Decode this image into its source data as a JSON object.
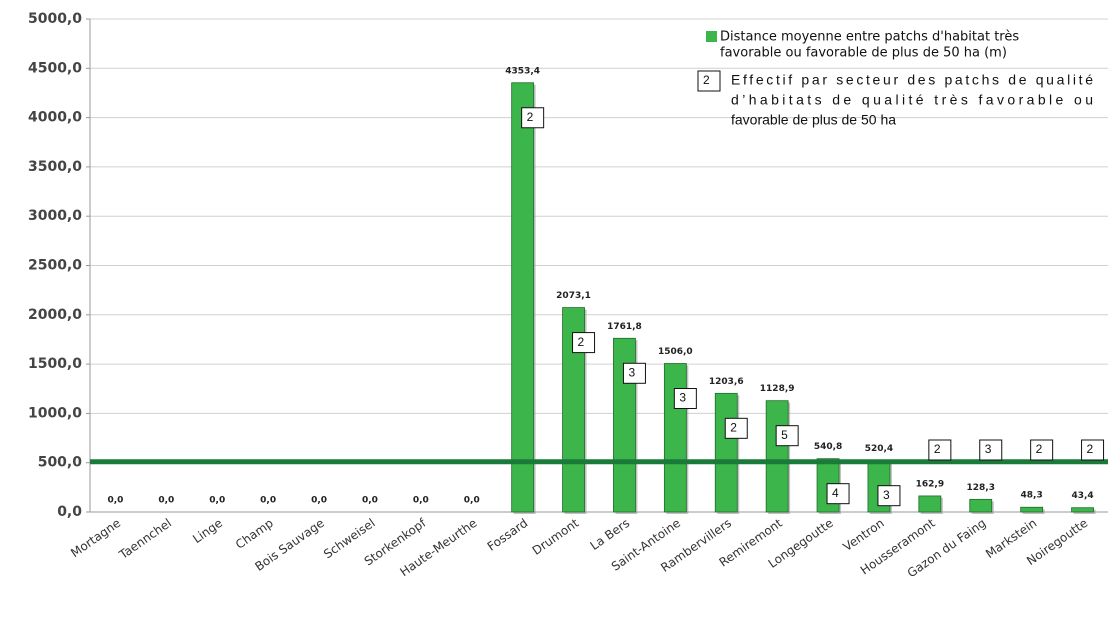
{
  "chart_data": {
    "type": "bar",
    "categories": [
      "Mortagne",
      "Taennchel",
      "Linge",
      "Champ",
      "Bois Sauvage",
      "Schweisel",
      "Storkenkopf",
      "Haute-Meurthe",
      "Fossard",
      "Drumont",
      "La Bers",
      "Saint-Antoine",
      "Rambervillers",
      "Remiremont",
      "Longegoutte",
      "Ventron",
      "Housseramont",
      "Gazon du Faing",
      "Markstein",
      "Noiregoutte"
    ],
    "series": [
      {
        "name": [
          "Distance moyenne entre patchs d'habitat très",
          "favorable ou favorable de plus de 50 ha (m)"
        ],
        "color": "#3cb54a",
        "values": [
          0,
          0,
          0,
          0,
          0,
          0,
          0,
          0,
          4353.4,
          2073.1,
          1761.8,
          1506.0,
          1203.6,
          1128.9,
          540.8,
          520.4,
          162.9,
          128.3,
          48.3,
          43.4
        ],
        "value_labels": [
          "0,0",
          "0,0",
          "0,0",
          "0,0",
          "0,0",
          "0,0",
          "0,0",
          "0,0",
          "4353,4",
          "2073,1",
          "1761,8",
          "1506,0",
          "1203,6",
          "1128,9",
          "540,8",
          "520,4",
          "162,9",
          "128,3",
          "48,3",
          "43,4"
        ]
      }
    ],
    "counts": {
      "name": [
        "Effectif par secteur des patchs de qualité",
        "d’habitats de qualité très favorable ou",
        "favorable de plus de 50 ha"
      ],
      "sample": "2",
      "values": [
        null,
        null,
        null,
        null,
        null,
        null,
        null,
        null,
        2,
        2,
        3,
        3,
        2,
        5,
        4,
        3,
        2,
        3,
        2,
        2
      ]
    },
    "reference_line": {
      "value": 510,
      "color": "#1a7a3a"
    },
    "ylim": [
      0,
      5000
    ],
    "yticks": [
      {
        "value": 0,
        "label": "0,0"
      },
      {
        "value": 500,
        "label": "500,0"
      },
      {
        "value": 1000,
        "label": "1000,0"
      },
      {
        "value": 1500,
        "label": "1500,0"
      },
      {
        "value": 2000,
        "label": "2000,0"
      },
      {
        "value": 2500,
        "label": "2500,0"
      },
      {
        "value": 3000,
        "label": "3000,0"
      },
      {
        "value": 3500,
        "label": "3500,0"
      },
      {
        "value": 4000,
        "label": "4000,0"
      },
      {
        "value": 4500,
        "label": "4500,0"
      },
      {
        "value": 5000,
        "label": "5000,0"
      }
    ],
    "grid": true
  }
}
